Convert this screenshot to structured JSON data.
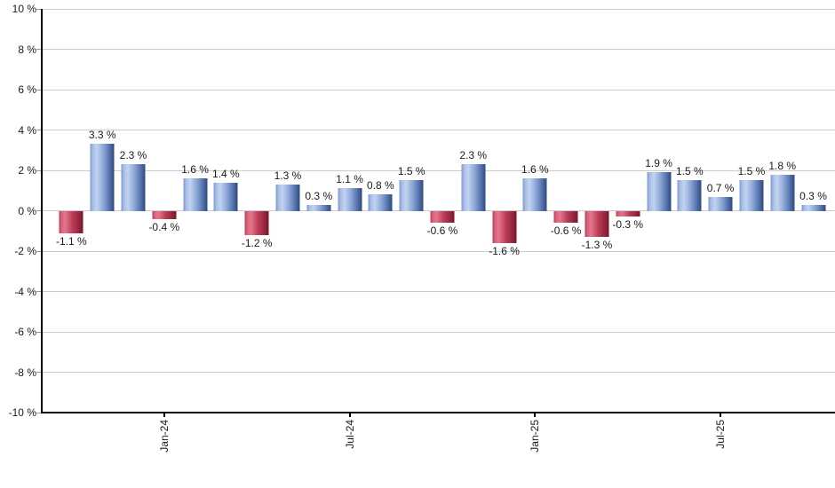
{
  "chart_data": {
    "type": "bar",
    "title": "",
    "xlabel": "",
    "ylabel": "",
    "ylim": [
      -10,
      10
    ],
    "y_tick_step": 2,
    "y_tick_labels": [
      "10 %",
      "8 %",
      "6 %",
      "4 %",
      "2 %",
      "0 %",
      "-2 %",
      "-4 %",
      "-6 %",
      "-8 %",
      "-10 %"
    ],
    "x_tick_labels": [
      "Jan-24",
      "Jul-24",
      "Jan-25",
      "Jul-25"
    ],
    "x_tick_slots": [
      3,
      9,
      15,
      21
    ],
    "n_bars": 25,
    "values": [
      -1.1,
      3.3,
      2.3,
      -0.4,
      1.6,
      1.4,
      -1.2,
      1.3,
      0.3,
      1.1,
      0.8,
      1.5,
      -0.6,
      2.3,
      -1.6,
      1.6,
      -0.6,
      -1.3,
      -0.3,
      1.9,
      1.5,
      0.7,
      1.5,
      1.8,
      0.3
    ],
    "bar_labels": [
      "-1.1 %",
      "3.3 %",
      "2.3 %",
      "-0.4 %",
      "1.6 %",
      "1.4 %",
      "-1.2 %",
      "1.3 %",
      "0.3 %",
      "1.1 %",
      "0.8 %",
      "1.5 %",
      "-0.6 %",
      "2.3 %",
      "-1.6 %",
      "1.6 %",
      "-0.6 %",
      "-1.3 %",
      "-0.3 %",
      "1.9 %",
      "1.5 %",
      "0.7 %",
      "1.5 %",
      "1.8 %",
      "0.3 %"
    ],
    "grid": true,
    "legend": "none",
    "colors": {
      "background": "#ffffff",
      "gridline": "#cccccc",
      "axis": "#000000",
      "tick": "#999999",
      "text": "#1a1a1a",
      "positive_gradient": [
        "#7e99cc 0%",
        "#a9c0e8 12%",
        "#c3d3f1 28%",
        "#8ba7d7 55%",
        "#5b79b2 78%",
        "#2e4a7e 100%"
      ],
      "negative_gradient": [
        "#c23a54 0%",
        "#da677f 12%",
        "#e2758b 26%",
        "#bc3e58 55%",
        "#9c2a44 78%",
        "#7c1628 100%"
      ]
    }
  }
}
